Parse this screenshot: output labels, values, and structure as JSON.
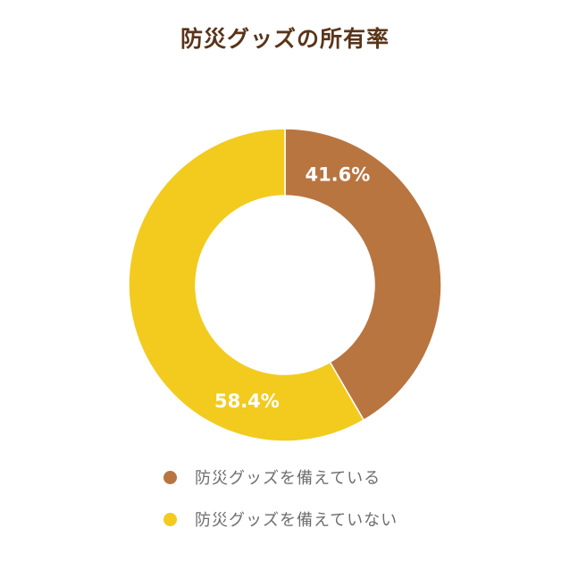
{
  "chart_data": {
    "type": "pie",
    "title": "防災グッズの所有率",
    "hole": true,
    "categories": [
      "防災グッズを備えている",
      "防災グッズを備えていない"
    ],
    "values": [
      41.6,
      58.4
    ],
    "value_labels": [
      "41.6%",
      "58.4%"
    ],
    "colors": [
      "#b87540",
      "#f2cb1e"
    ],
    "legend_position": "bottom"
  }
}
